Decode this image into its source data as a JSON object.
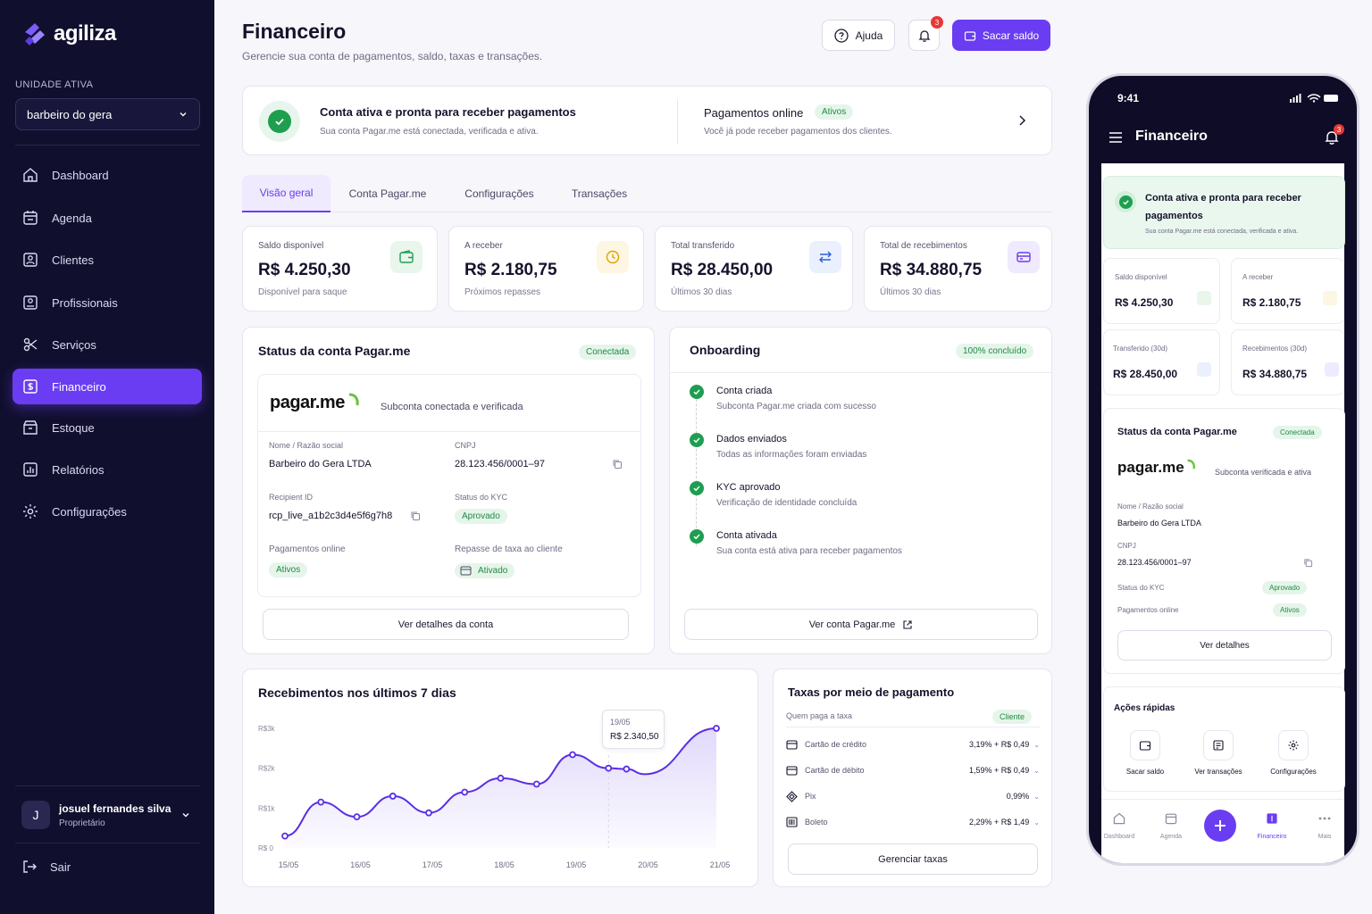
{
  "app": {
    "brand": "agiliza"
  },
  "sidebar": {
    "unit_label": "UNIDADE ATIVA",
    "unit_value": "barbeiro do gera",
    "items": [
      {
        "label": "Dashboard",
        "icon": "home-icon"
      },
      {
        "label": "Agenda",
        "icon": "calendar-icon"
      },
      {
        "label": "Clientes",
        "icon": "clients-icon"
      },
      {
        "label": "Profissionais",
        "icon": "professionals-icon"
      },
      {
        "label": "Serviços",
        "icon": "services-icon"
      },
      {
        "label": "Financeiro",
        "icon": "finance-icon",
        "active": true
      },
      {
        "label": "Estoque",
        "icon": "stock-icon"
      },
      {
        "label": "Relatórios",
        "icon": "reports-icon"
      },
      {
        "label": "Configurações",
        "icon": "settings-icon"
      }
    ],
    "user": {
      "initial": "J",
      "name": "josuel fernandes silva",
      "role": "Proprietário"
    },
    "logout": "Sair"
  },
  "header": {
    "title": "Financeiro",
    "subtitle": "Gerencie sua conta de pagamentos, saldo, taxas e transações.",
    "help": "Ajuda",
    "notif_count": "3",
    "primary": "Sacar saldo"
  },
  "banner": {
    "title": "Conta ativa e pronta para receber pagamentos",
    "subtitle": "Sua conta Pagar.me está conectada, verificada e ativa.",
    "right_title": "Pagamentos online",
    "right_badge": "Ativos",
    "right_sub": "Você já pode receber pagamentos dos clientes."
  },
  "tabs": [
    "Visão geral",
    "Conta Pagar.me",
    "Configurações",
    "Transações"
  ],
  "stats": [
    {
      "label": "Saldo disponível",
      "value": "R$ 4.250,30",
      "sub": "Disponível para saque",
      "icon": "wallet-icon"
    },
    {
      "label": "A receber",
      "value": "R$ 2.180,75",
      "sub": "Próximos repasses",
      "icon": "clock-icon"
    },
    {
      "label": "Total transferido",
      "value": "R$ 28.450,00",
      "sub": "Últimos 30 dias",
      "icon": "transfer-icon"
    },
    {
      "label": "Total de recebimentos",
      "value": "R$ 34.880,75",
      "sub": "Últimos 30 dias",
      "icon": "card-icon"
    }
  ],
  "status_card": {
    "title": "Status da conta Pagar.me",
    "badge": "Conectada",
    "logo": "pagar.me",
    "logo_sub": "Subconta conectada e verificada",
    "name_label": "Nome / Razão social",
    "name_value": "Barbeiro do Gera LTDA",
    "cnpj_label": "CNPJ",
    "cnpj_value": "28.123.456/0001–97",
    "recipient_label": "Recipient ID",
    "recipient_value": "rcp_live_a1b2c3d4e5f6g7h8",
    "kyc_label": "Status do KYC",
    "kyc_value": "Aprovado",
    "online_label": "Pagamentos online",
    "online_value": "Ativos",
    "fee_label": "Repasse de taxa ao cliente",
    "fee_value": "Ativado",
    "button": "Ver detalhes da conta"
  },
  "onboarding": {
    "title": "Onboarding",
    "badge": "100% concluído",
    "steps": [
      {
        "title": "Conta criada",
        "sub": "Subconta Pagar.me criada com sucesso"
      },
      {
        "title": "Dados enviados",
        "sub": "Todas as informações foram enviadas"
      },
      {
        "title": "KYC aprovado",
        "sub": "Verificação de identidade concluída"
      },
      {
        "title": "Conta ativada",
        "sub": "Sua conta está ativa para receber pagamentos"
      }
    ],
    "button": "Ver conta Pagar.me"
  },
  "chart_data": {
    "type": "area",
    "title": "Recebimentos nos últimos 7 dias",
    "categories": [
      "15/05",
      "16/05",
      "17/05",
      "18/05",
      "19/05",
      "20/05",
      "21/05"
    ],
    "x": [
      0,
      0.5,
      1,
      1.5,
      2,
      2.5,
      3,
      3.5,
      4,
      4.5,
      4.75,
      5,
      6
    ],
    "values": [
      300,
      1150,
      780,
      1300,
      880,
      1400,
      1750,
      1600,
      2340,
      2000,
      1980,
      1850,
      3000
    ],
    "yticks": [
      "R$ 0",
      "R$1k",
      "R$2k",
      "R$3k"
    ],
    "ylim": [
      0,
      3000
    ],
    "tooltip": {
      "date": "19/05",
      "value": "R$ 2.340,50"
    },
    "color": "#5b2ee6"
  },
  "fees": {
    "title": "Taxas por meio de pagamento",
    "payer_label": "Quem paga a taxa",
    "payer_value": "Cliente",
    "rows": [
      {
        "name": "Cartão de crédito",
        "value": "3,19% + R$ 0,49",
        "icon": "credit-card-icon"
      },
      {
        "name": "Cartão de débito",
        "value": "1,59% + R$ 0,49",
        "icon": "debit-card-icon"
      },
      {
        "name": "Pix",
        "value": "0,99%",
        "icon": "pix-icon"
      },
      {
        "name": "Boleto",
        "value": "2,29% + R$ 1,49",
        "icon": "barcode-icon"
      }
    ],
    "button": "Gerenciar taxas"
  },
  "phone": {
    "time": "9:41",
    "title": "Financeiro",
    "notif": "3",
    "banner_title": "Conta ativa e pronta para receber pagamentos",
    "banner_sub": "Sua conta Pagar.me está conectada, verificada e ativa.",
    "stats": [
      {
        "label": "Saldo disponível",
        "value": "R$ 4.250,30"
      },
      {
        "label": "A receber",
        "value": "R$ 2.180,75"
      },
      {
        "label": "Transferido (30d)",
        "value": "R$ 28.450,00"
      },
      {
        "label": "Recebimentos (30d)",
        "value": "R$ 34.880,75"
      }
    ],
    "status_title": "Status da conta Pagar.me",
    "status_badge": "Conectada",
    "logo": "pagar.me",
    "logo_sub": "Subconta verificada e ativa",
    "name_label": "Nome / Razão social",
    "name_value": "Barbeiro do Gera LTDA",
    "cnpj_label": "CNPJ",
    "cnpj_value": "28.123.456/0001–97",
    "kyc_label": "Status do KYC",
    "kyc_value": "Aprovado",
    "online_label": "Pagamentos online",
    "online_value": "Ativos",
    "details_button": "Ver detalhes",
    "quick_title": "Ações rápidas",
    "quick": [
      "Sacar saldo",
      "Ver transações",
      "Configurações"
    ],
    "nav": [
      "Dashboard",
      "Agenda",
      "Financeiro",
      "Mais"
    ]
  }
}
